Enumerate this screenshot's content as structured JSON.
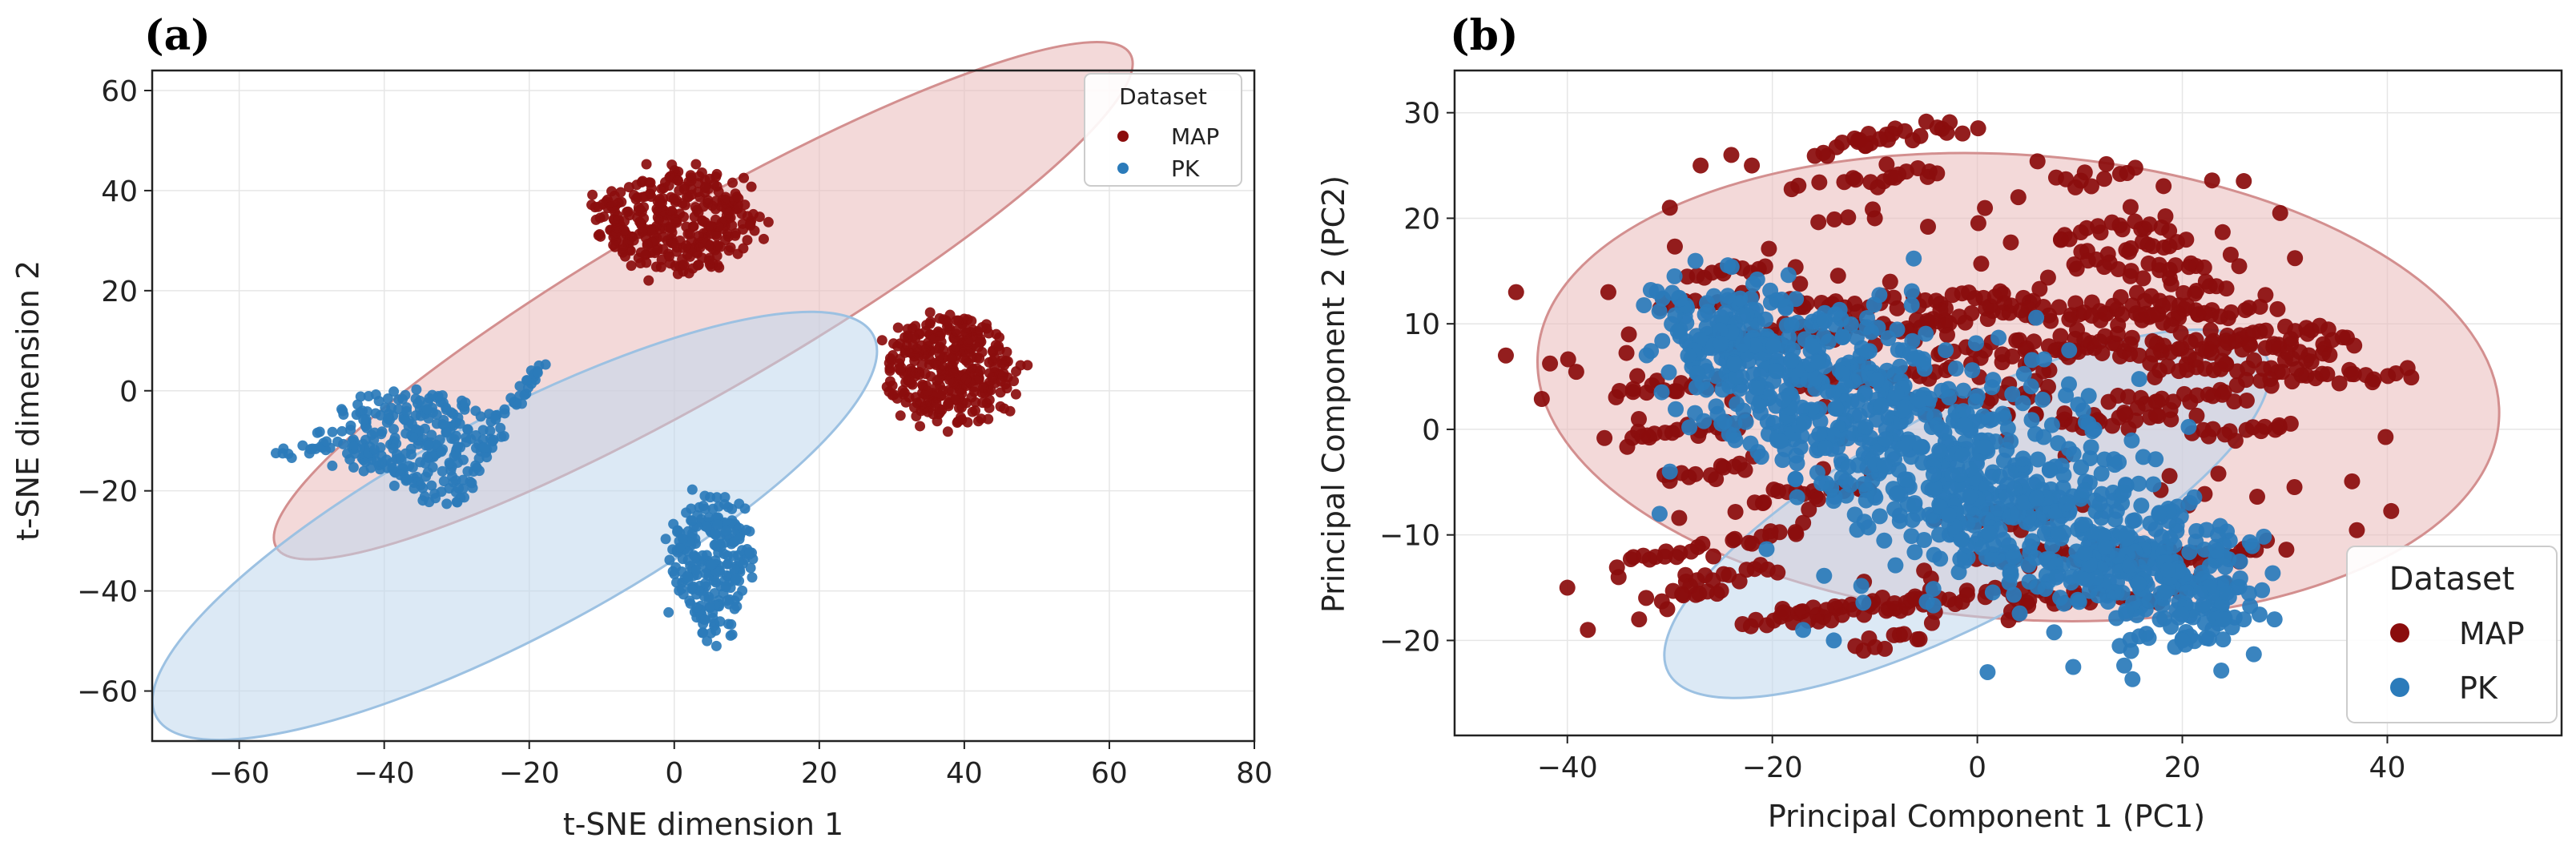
{
  "chart_data": [
    {
      "type": "scatter",
      "panel_label": "(a)",
      "xlabel": "t-SNE dimension 1",
      "ylabel": "t-SNE dimension 2",
      "xlim": [
        -72,
        80
      ],
      "ylim": [
        -70,
        64
      ],
      "xticks": [
        -60,
        -40,
        -20,
        0,
        20,
        40,
        60,
        80
      ],
      "yticks": [
        -60,
        -40,
        -20,
        0,
        20,
        40,
        60
      ],
      "grid": true,
      "legend": {
        "title": "Dataset",
        "position": "top-right",
        "entries": [
          "MAP",
          "PK"
        ]
      },
      "series": [
        {
          "name": "MAP",
          "color": "#8b0d0d",
          "clusters": [
            {
              "center": [
                0,
                34
              ],
              "spread": [
                10,
                7
              ],
              "n": 340
            },
            {
              "center": [
                38,
                4
              ],
              "spread": [
                8,
                7
              ],
              "n": 340
            }
          ]
        },
        {
          "name": "PK",
          "color": "#2b7bba",
          "clusters": [
            {
              "center": [
                -36,
                -9
              ],
              "spread": [
                10,
                6
              ],
              "n": 220
            },
            {
              "center": [
                5,
                -35
              ],
              "spread": [
                5,
                9
              ],
              "n": 240
            }
          ]
        }
      ],
      "ellipses": [
        {
          "series": "MAP",
          "center": [
            4,
            18
          ],
          "rx": 68,
          "ry": 18,
          "angle_deg": -30,
          "fill": "#e9b9b9",
          "stroke": "#d38f8f"
        },
        {
          "series": "PK",
          "center": [
            -22,
            -27
          ],
          "rx": 56,
          "ry": 22,
          "angle_deg": -28,
          "fill": "#bfd7ec",
          "stroke": "#9cc1e2"
        }
      ]
    },
    {
      "type": "scatter",
      "panel_label": "(b)",
      "xlabel": "Principal Component 1 (PC1)",
      "ylabel": "Principal Component 2 (PC2)",
      "xlim": [
        -51,
        57
      ],
      "ylim": [
        -29,
        34
      ],
      "xticks": [
        -40,
        -20,
        0,
        20,
        40
      ],
      "yticks": [
        -20,
        -10,
        0,
        10,
        20,
        30
      ],
      "grid": true,
      "legend": {
        "title": "Dataset",
        "position": "lower-right",
        "entries": [
          "MAP",
          "PK"
        ]
      },
      "series": [
        {
          "name": "MAP",
          "color": "#8b0d0d",
          "note": "scattered points with horizontal streak patterns spanning PC1 -45 to 42, PC2 -19 to 28"
        },
        {
          "name": "PK",
          "color": "#2b7bba",
          "note": "dense diagonal band from (-27, 10) to (29, -19)"
        }
      ],
      "ellipses": [
        {
          "series": "MAP",
          "center": [
            4,
            4
          ],
          "rx": 47,
          "ry": 22,
          "angle_deg": 4,
          "fill": "#e9b9b9",
          "stroke": "#d38f8f"
        },
        {
          "series": "PK",
          "center": [
            -1,
            -8
          ],
          "rx": 33,
          "ry": 10,
          "angle_deg": -28,
          "fill": "#bfd7ec",
          "stroke": "#9cc1e2"
        }
      ]
    }
  ]
}
